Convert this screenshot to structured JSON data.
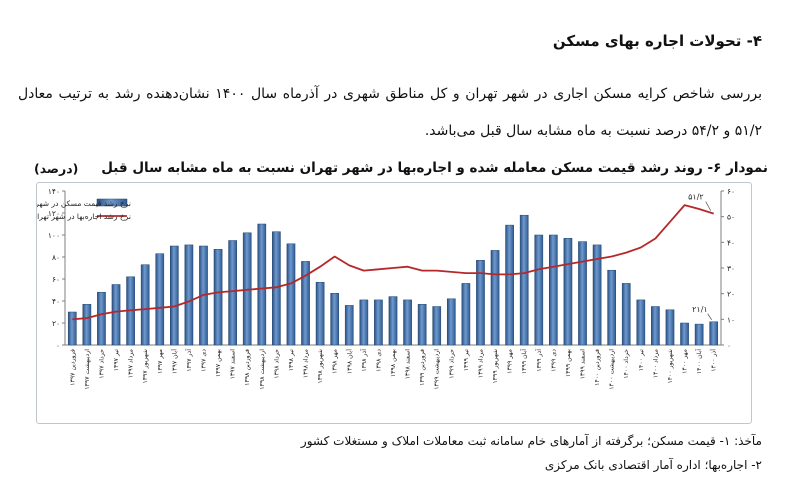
{
  "heading": "۴- تحولات اجاره بهای مسکن",
  "intro": "بررسی شاخص کرایه مسکن اجاری در شهر تهران و کل مناطق شهری در آذرماه سال ۱۴۰۰ نشان‌دهنده رشد به ترتیب معادل ۵۱/۲ و ۵۴/۲ درصد نسبت به ماه مشابه سال قبل می‌باشد.",
  "chart_title": "نمودار ۶- روند رشد قیمت مسکن معامله شده و اجاره‌بها در شهر تهران نسبت به ماه مشابه سال قبل",
  "unit": "(درصد)",
  "notes": [
    "مآخذ: ۱- قیمت مسکن؛ برگرفته از آمارهای خام سامانه ثبت معاملات املاک و مستغلات کشور",
    "۲- اجاره‌بها؛ اداره آمار اقتصادی بانک مرکزی"
  ],
  "chart_data": {
    "type": "bar",
    "title": "نمودار ۶- روند رشد قیمت مسکن معامله شده و اجاره‌بها در شهر تهران نسبت به ماه مشابه سال قبل",
    "ylabel": "(درصد)",
    "categories": [
      "فروردین ۱۳۹۷",
      "اردیبهشت ۱۳۹۷",
      "خرداد ۱۳۹۷",
      "تیر ۱۳۹۷",
      "مرداد ۱۳۹۷",
      "شهریور ۱۳۹۷",
      "مهر ۱۳۹۷",
      "آبان ۱۳۹۷",
      "آذر ۱۳۹۷",
      "دی ۱۳۹۷",
      "بهمن ۱۳۹۷",
      "اسفند ۱۳۹۷",
      "فروردین ۱۳۹۸",
      "اردیبهشت ۱۳۹۸",
      "خرداد ۱۳۹۸",
      "تیر ۱۳۹۸",
      "مرداد ۱۳۹۸",
      "شهریور ۱۳۹۸",
      "مهر ۱۳۹۸",
      "آبان ۱۳۹۸",
      "آذر ۱۳۹۸",
      "دی ۱۳۹۸",
      "بهمن ۱۳۹۸",
      "اسفند ۱۳۹۸",
      "فروردین ۱۳۹۹",
      "اردیبهشت ۱۳۹۹",
      "خرداد ۱۳۹۹",
      "تیر ۱۳۹۹",
      "مرداد ۱۳۹۹",
      "شهریور ۱۳۹۹",
      "مهر ۱۳۹۹",
      "آبان ۱۳۹۹",
      "آذر ۱۳۹۹",
      "دی ۱۳۹۹",
      "بهمن ۱۳۹۹",
      "اسفند ۱۳۹۹",
      "فروردین ۱۴۰۰",
      "اردیبهشت ۱۴۰۰",
      "خرداد ۱۴۰۰",
      "تیر ۱۴۰۰",
      "مرداد ۱۴۰۰",
      "شهریور ۱۴۰۰",
      "مهر ۱۴۰۰",
      "آبان ۱۴۰۰",
      "آذر ۱۴۰۰"
    ],
    "series": [
      {
        "name": "نرخ رشد قیمت مسکن در شهر تهران (محور چپ)",
        "axis": "left",
        "type": "bar",
        "color": "#3d6fad",
        "values": [
          30,
          37,
          48,
          55,
          62,
          73,
          83,
          90,
          91,
          90,
          87,
          95,
          102,
          110,
          103,
          92,
          76,
          57,
          47,
          36,
          41,
          41,
          44,
          41,
          37,
          35,
          42,
          56,
          77,
          86,
          109,
          118,
          100,
          100,
          97,
          94,
          91,
          68,
          56,
          41,
          35,
          32,
          20,
          19,
          21.1
        ]
      },
      {
        "name": "نرخ رشد اجاره‌بها در شهر تهران (محور راست)",
        "axis": "right",
        "type": "line",
        "color": "#b5282a",
        "values": [
          10,
          10.5,
          12,
          13,
          13.5,
          14,
          14.5,
          15,
          17,
          19.5,
          20.5,
          21,
          21.5,
          22,
          22.5,
          24,
          27,
          30.5,
          34.5,
          31,
          29,
          29.5,
          30,
          30.5,
          29,
          29,
          28.5,
          28,
          28,
          27.5,
          27.5,
          28,
          29.5,
          30.5,
          31.5,
          32.5,
          33.5,
          34.5,
          36,
          38,
          41.5,
          48,
          54.5,
          53,
          51.2
        ]
      }
    ],
    "left_axis": {
      "ylim": [
        0,
        140
      ],
      "ticks": [
        "۰",
        "۲۰",
        "۴۰",
        "۶۰",
        "۸۰",
        "۱۰۰",
        "۱۲۰",
        "۱۴۰"
      ]
    },
    "right_axis": {
      "ylim": [
        0,
        60
      ],
      "ticks": [
        "۰",
        "۱۰",
        "۲۰",
        "۳۰",
        "۴۰",
        "۵۰",
        "۶۰"
      ]
    },
    "annotations": [
      {
        "text": "۵۱/۲",
        "series": 1,
        "index": 44
      },
      {
        "text": "۲۱/۱",
        "series": 0,
        "index": 44
      }
    ],
    "legend_position": "top-left",
    "grid": false
  }
}
